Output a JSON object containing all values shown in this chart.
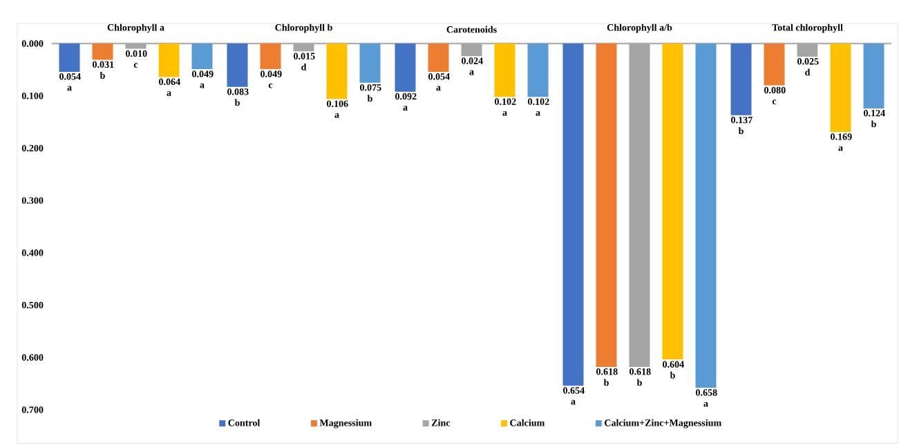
{
  "chart_data": {
    "type": "bar",
    "categories": [
      "Chlorophyll a",
      "Chlorophyll b",
      "Carotenoids",
      "Chlorophyll a/b",
      "Total chlorophyll"
    ],
    "ylim": [
      0.7,
      0
    ],
    "yticks": [
      {
        "value": 0,
        "label": "0.000"
      },
      {
        "value": 0.1,
        "label": "0.100"
      },
      {
        "value": 0.2,
        "label": "0.200"
      },
      {
        "value": 0.3,
        "label": "0.300"
      },
      {
        "value": 0.4,
        "label": "0.400"
      },
      {
        "value": 0.5,
        "label": "0.500"
      },
      {
        "value": 0.6,
        "label": "0.600"
      },
      {
        "value": 0.7,
        "label": "0.700"
      }
    ],
    "legend": "bottom",
    "series": [
      {
        "name": "Control",
        "color": "#4472c4",
        "values": [
          0.054,
          0.083,
          0.092,
          0.654,
          0.137
        ],
        "value_labels": [
          "0.054 a",
          "0.083 b",
          "0.092 a",
          "0.654 a",
          "0.137 b"
        ]
      },
      {
        "name": "Magnessium",
        "color": "#ed7d31",
        "values": [
          0.031,
          0.049,
          0.054,
          0.618,
          0.08
        ],
        "value_labels": [
          "0.031 b",
          "0.049 c",
          "0.054 a",
          "0.618 b",
          "0.080 c"
        ]
      },
      {
        "name": "Zinc",
        "color": "#a5a5a5",
        "values": [
          0.01,
          0.015,
          0.024,
          0.618,
          0.025
        ],
        "value_labels": [
          "0.010 c",
          "0.015 d",
          "0.024 a",
          "0.618 b",
          "0.025 d"
        ]
      },
      {
        "name": "Calcium",
        "color": "#ffc000",
        "values": [
          0.064,
          0.106,
          0.102,
          0.604,
          0.169
        ],
        "value_labels": [
          "0.064 a",
          "0.106 a",
          "0.102 a",
          "0.604 b",
          "0.169 a"
        ]
      },
      {
        "name": "Calcium+Zinc+Magnessium",
        "color": "#5b9bd5",
        "values": [
          0.049,
          0.075,
          0.102,
          0.658,
          0.124
        ],
        "value_labels": [
          "0.049 a",
          "0.075 b",
          "0.102 a",
          "0.658 a",
          "0.124 b"
        ]
      }
    ]
  }
}
